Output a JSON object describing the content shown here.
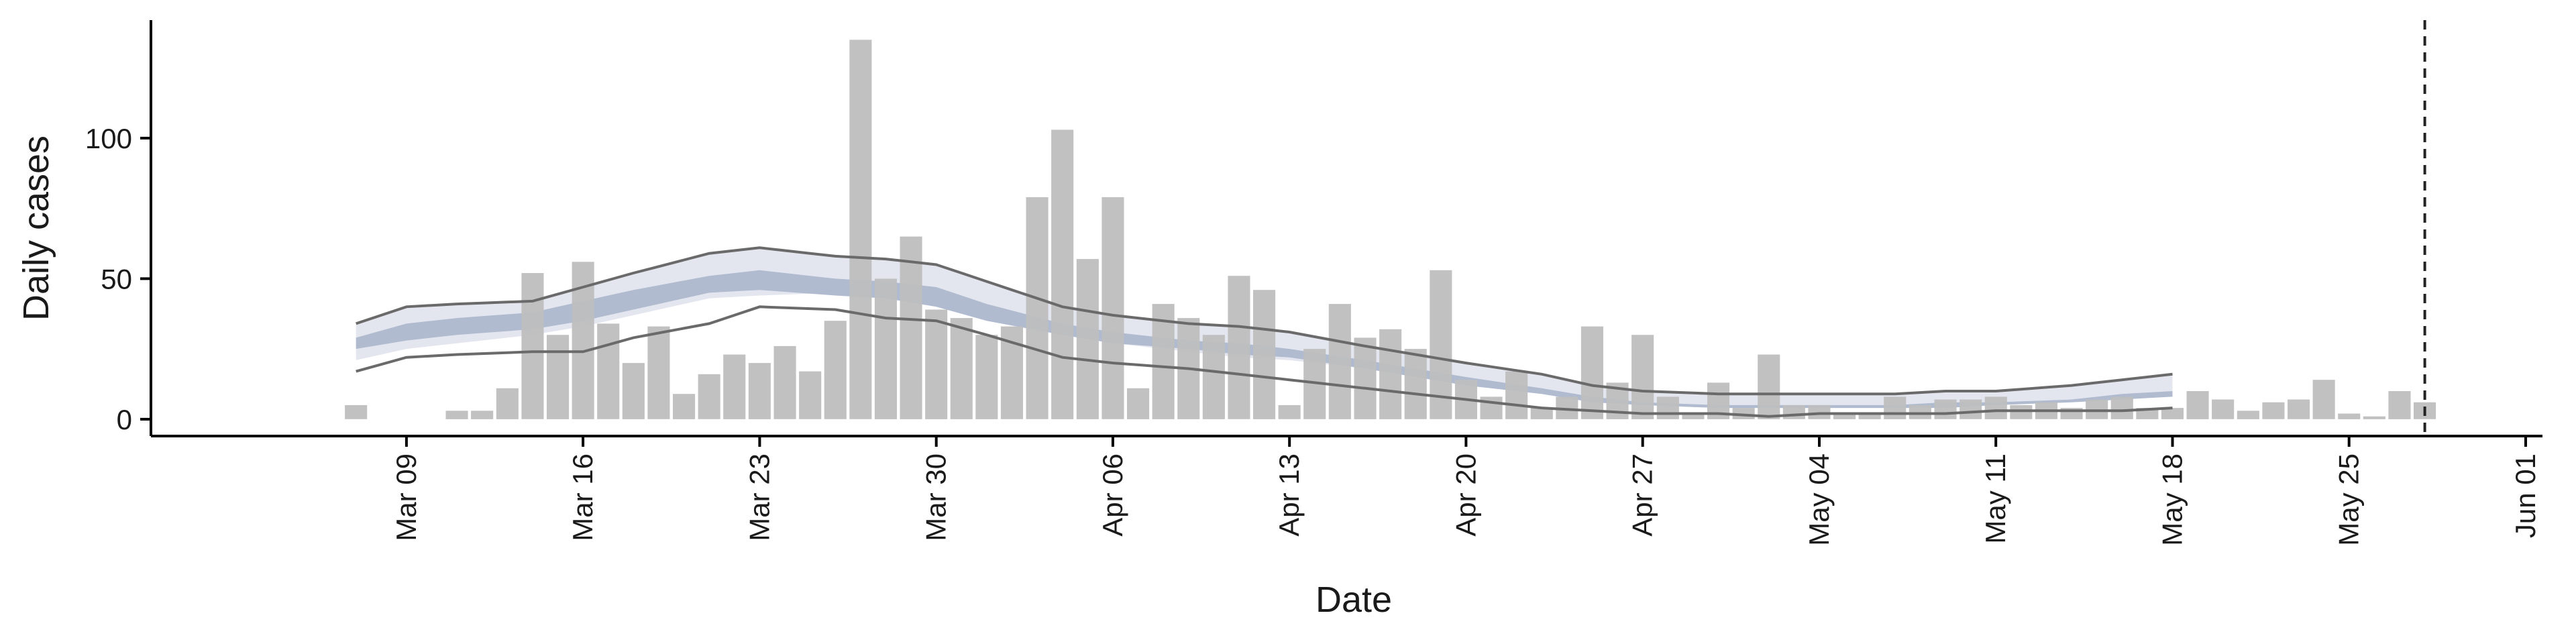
{
  "chart_data": {
    "type": "bar",
    "xlabel": "Date",
    "ylabel": "Daily cases",
    "x_tick_labels": [
      "Mar 09",
      "Mar 16",
      "Mar 23",
      "Mar 30",
      "Apr 06",
      "Apr 13",
      "Apr 20",
      "Apr 27",
      "May 04",
      "May 11",
      "May 18",
      "May 25",
      "Jun 01"
    ],
    "y_ticks": [
      0,
      50,
      100
    ],
    "ylim": [
      -6,
      142
    ],
    "x_range": [
      "2020-03-01",
      "2020-06-01"
    ],
    "bars": {
      "start_date": "2020-03-07",
      "values": [
        5,
        0,
        0,
        0,
        3,
        3,
        11,
        52,
        30,
        56,
        34,
        20,
        33,
        9,
        16,
        23,
        20,
        26,
        17,
        35,
        135,
        50,
        65,
        39,
        36,
        30,
        33,
        79,
        103,
        57,
        79,
        11,
        41,
        36,
        30,
        51,
        46,
        5,
        25,
        41,
        29,
        32,
        25,
        53,
        14,
        8,
        17,
        4,
        8,
        33,
        13,
        30,
        8,
        2,
        13,
        4,
        23,
        5,
        5,
        2,
        2,
        8,
        5,
        7,
        7,
        8,
        5,
        6,
        4,
        7,
        8,
        4,
        4,
        10,
        7,
        3,
        6,
        7,
        14,
        2,
        1,
        10,
        6
      ],
      "color": "#bebebe"
    },
    "fit": {
      "start_date": "2020-03-07",
      "end_date": "2020-05-18",
      "key_dates": [
        "2020-03-07",
        "2020-03-09",
        "2020-03-11",
        "2020-03-14",
        "2020-03-16",
        "2020-03-18",
        "2020-03-21",
        "2020-03-23",
        "2020-03-26",
        "2020-03-28",
        "2020-03-30",
        "2020-04-01",
        "2020-04-04",
        "2020-04-06",
        "2020-04-09",
        "2020-04-11",
        "2020-04-13",
        "2020-04-16",
        "2020-04-18",
        "2020-04-20",
        "2020-04-23",
        "2020-04-25",
        "2020-04-27",
        "2020-04-30",
        "2020-05-02",
        "2020-05-04",
        "2020-05-07",
        "2020-05-09",
        "2020-05-11",
        "2020-05-14",
        "2020-05-16",
        "2020-05-18"
      ],
      "upper": [
        34,
        40,
        41,
        42,
        47,
        52,
        59,
        61,
        58,
        57,
        55,
        49,
        40,
        37,
        34,
        33,
        31,
        26,
        23,
        20,
        16,
        12,
        10,
        9,
        9,
        9,
        9,
        10,
        10,
        12,
        14,
        16
      ],
      "outer_band_low": [
        21,
        25,
        27,
        30,
        33,
        37,
        43,
        44,
        45,
        44,
        41,
        35,
        30,
        27,
        24,
        22,
        21,
        18,
        15,
        12,
        9,
        6,
        5,
        4,
        4,
        4,
        4,
        5,
        6,
        7,
        8,
        9
      ],
      "inner_band_high": [
        29,
        34,
        36,
        38,
        42,
        46,
        51,
        53,
        50,
        49,
        47,
        41,
        34,
        31,
        28,
        27,
        25,
        21,
        18,
        15,
        11,
        8,
        6,
        5,
        5,
        5,
        5,
        6,
        6,
        7,
        9,
        10
      ],
      "inner_band_low": [
        25,
        28,
        30,
        32,
        35,
        39,
        45,
        46,
        44,
        43,
        40,
        35,
        30,
        27,
        25,
        23,
        22,
        18,
        15,
        12,
        9,
        6,
        5,
        4,
        4,
        4,
        4,
        4,
        5,
        6,
        7,
        8
      ],
      "lower": [
        17,
        22,
        23,
        24,
        24,
        29,
        34,
        40,
        39,
        36,
        35,
        30,
        22,
        20,
        18,
        16,
        14,
        11,
        9,
        7,
        4,
        3,
        2,
        2,
        1,
        2,
        2,
        2,
        3,
        3,
        3,
        4
      ],
      "outer_band_color": "#e4e6ef",
      "inner_band_color": "#b0bbd0",
      "line_color": "#6a6a6a"
    },
    "vline_date": "2020-05-28",
    "grid": false,
    "legend": "none"
  }
}
